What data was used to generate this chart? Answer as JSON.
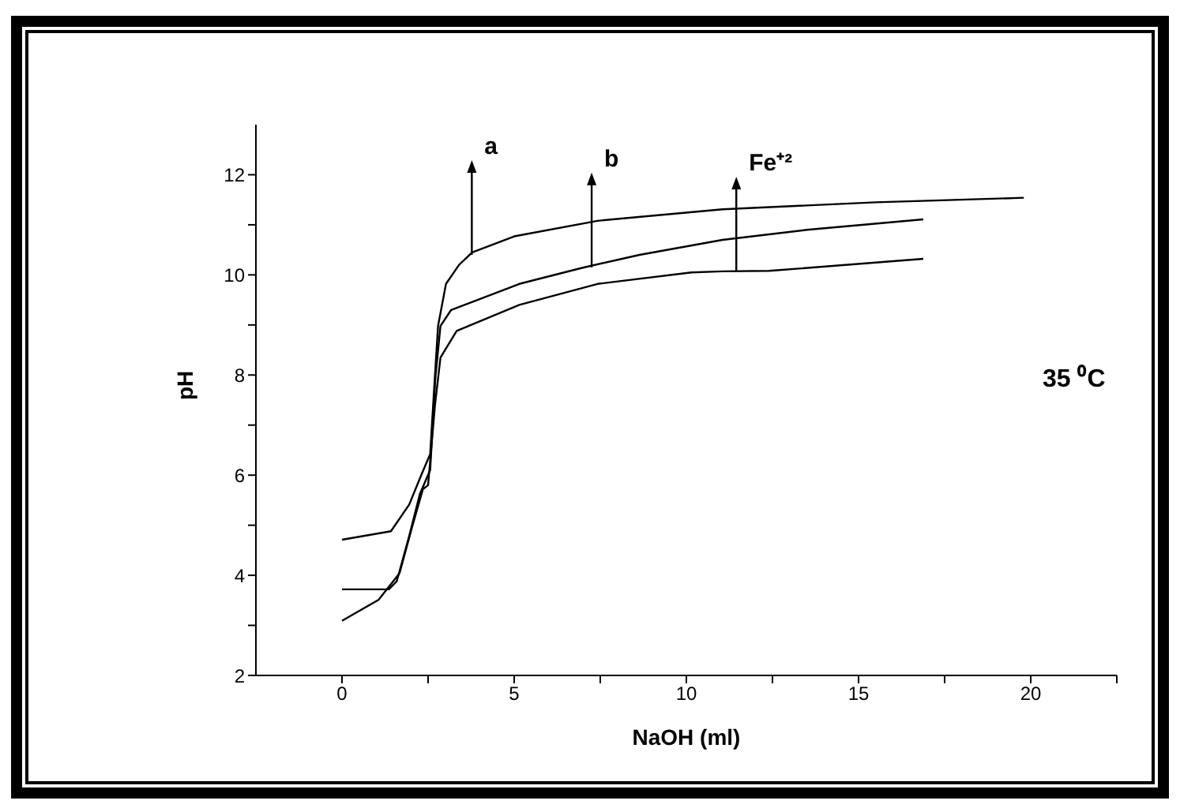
{
  "chart_data": {
    "type": "line",
    "xlabel": "NaOH  (ml)",
    "ylabel": "pH",
    "xlim": [
      -2.5,
      22.5
    ],
    "xticks": [
      0,
      {
        "value": 2.5,
        "label": null
      },
      5,
      {
        "value": 7.5,
        "label": null
      },
      10,
      {
        "value": 12.5,
        "label": null
      },
      15,
      {
        "value": 17.5,
        "label": null
      },
      20,
      {
        "value": 22.5,
        "label": null
      }
    ],
    "ylim": [
      2,
      13
    ],
    "yticks": [
      2,
      {
        "value": 3,
        "label": null
      },
      4,
      {
        "value": 5,
        "label": null
      },
      6,
      {
        "value": 7,
        "label": null
      },
      8,
      {
        "value": 9,
        "label": null
      },
      10,
      {
        "value": 11,
        "label": null
      },
      12
    ],
    "grid": false,
    "legend": false,
    "marker": "none",
    "line_style": "solid",
    "series": [
      {
        "color": "#000000",
        "x": [
          0,
          1.42,
          1.95,
          2.3,
          2.56,
          2.7,
          2.79,
          3.02,
          3.4,
          3.78,
          5.0,
          7.42,
          11.05,
          15.5,
          19.8
        ],
        "values": [
          4.71,
          4.88,
          5.41,
          6.0,
          6.42,
          8.0,
          8.98,
          9.82,
          10.2,
          10.45,
          10.77,
          11.08,
          11.31,
          11.45,
          11.54
        ]
      },
      {
        "color": "#000000",
        "x": [
          0,
          1.36,
          1.59,
          1.95,
          2.26,
          2.56,
          2.71,
          2.86,
          3.17,
          5.15,
          6.97,
          8.64,
          11.05,
          13.5,
          16.88
        ],
        "values": [
          3.72,
          3.72,
          3.88,
          4.78,
          5.62,
          6.1,
          7.93,
          8.98,
          9.3,
          9.82,
          10.14,
          10.4,
          10.7,
          10.9,
          11.11
        ]
      },
      {
        "color": "#000000",
        "x": [
          0,
          1.06,
          1.67,
          2.05,
          2.35,
          2.5,
          2.7,
          2.86,
          3.33,
          5.15,
          7.42,
          10.15,
          11.05,
          12.4,
          16.88
        ],
        "values": [
          3.09,
          3.51,
          4.04,
          5.0,
          5.72,
          5.8,
          7.4,
          8.35,
          8.88,
          9.4,
          9.82,
          10.05,
          10.07,
          10.08,
          10.32
        ]
      }
    ],
    "annotations": [
      {
        "text": "a",
        "x": 3.77,
        "y": 10.4
      },
      {
        "text": "b",
        "x": 7.25,
        "y": 10.15
      },
      {
        "text": "Fe⁺²",
        "x": 11.45,
        "y": 10.07
      },
      "35 ⁰C"
    ]
  }
}
